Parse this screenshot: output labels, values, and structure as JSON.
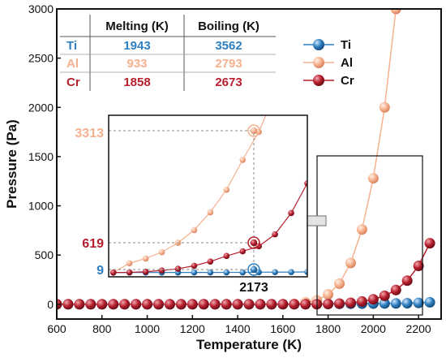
{
  "chart_data": {
    "type": "scatter",
    "xlabel": "Temperature (K)",
    "ylabel": "Pressure (Pa)",
    "xlim": [
      600,
      2300
    ],
    "ylim": [
      -150,
      3000
    ],
    "x_ticks": [
      "600",
      "800",
      "1000",
      "1200",
      "1400",
      "1600",
      "1800",
      "2000",
      "2200"
    ],
    "y_ticks": [
      "0",
      "500",
      "1000",
      "1500",
      "2000",
      "2500",
      "3000"
    ],
    "colors": {
      "Ti": "#2f7fc1",
      "Al": "#f6b18f",
      "Cr": "#b51f2e"
    },
    "legend_position": "top-right",
    "series": [
      {
        "name": "Ti",
        "x": [
          600,
          650,
          700,
          750,
          800,
          850,
          900,
          950,
          1000,
          1050,
          1100,
          1150,
          1200,
          1250,
          1300,
          1350,
          1400,
          1450,
          1500,
          1550,
          1600,
          1650,
          1700,
          1750,
          1800,
          1850,
          1900,
          1950,
          2000,
          2050,
          2100,
          2150,
          2200,
          2250
        ],
        "y": [
          0,
          0,
          0,
          0,
          0,
          0,
          0,
          0,
          0,
          0,
          0,
          0,
          0,
          0,
          0,
          0,
          0,
          0,
          0,
          0,
          1,
          1,
          1,
          2,
          3,
          4,
          5,
          6,
          7,
          8,
          9,
          11,
          14,
          20
        ]
      },
      {
        "name": "Al",
        "x": [
          1650,
          1700,
          1750,
          1800,
          1850,
          1900,
          1950,
          2000,
          2050,
          2100
        ],
        "y": [
          5,
          20,
          40,
          100,
          210,
          420,
          760,
          1280,
          2000,
          3000
        ]
      },
      {
        "name": "Cr",
        "x": [
          600,
          650,
          700,
          750,
          800,
          850,
          900,
          950,
          1000,
          1050,
          1100,
          1150,
          1200,
          1250,
          1300,
          1350,
          1400,
          1450,
          1500,
          1550,
          1600,
          1650,
          1700,
          1750,
          1800,
          1850,
          1900,
          1950,
          2000,
          2050,
          2100,
          2150,
          2200,
          2250
        ],
        "y": [
          0,
          0,
          0,
          0,
          0,
          0,
          0,
          0,
          0,
          0,
          0,
          0,
          0,
          0,
          0,
          0,
          0,
          0,
          0,
          0,
          0,
          0,
          0,
          1,
          3,
          7,
          15,
          28,
          50,
          86,
          145,
          240,
          390,
          620
        ]
      }
    ],
    "table": {
      "headers": [
        "",
        "Melting (K)",
        "Boiling (K)"
      ],
      "rows": [
        {
          "element": "Ti",
          "melting": "1943",
          "boiling": "3562"
        },
        {
          "element": "Al",
          "melting": "933",
          "boiling": "2793"
        },
        {
          "element": "Cr",
          "melting": "1858",
          "boiling": "2673"
        }
      ]
    },
    "inset": {
      "xlim": [
        1800,
        2230
      ],
      "ylim": [
        -100,
        3700
      ],
      "marked_x": 2173,
      "marked_x_label": "2173",
      "marked_values": [
        {
          "series": "Al",
          "y": 3313,
          "label": "3313"
        },
        {
          "series": "Cr",
          "y": 619,
          "label": "619"
        },
        {
          "series": "Ti",
          "y": 9,
          "label": "9"
        }
      ],
      "source_region": {
        "x": [
          1790,
          2230
        ],
        "y": [
          -100,
          1900
        ]
      }
    }
  }
}
